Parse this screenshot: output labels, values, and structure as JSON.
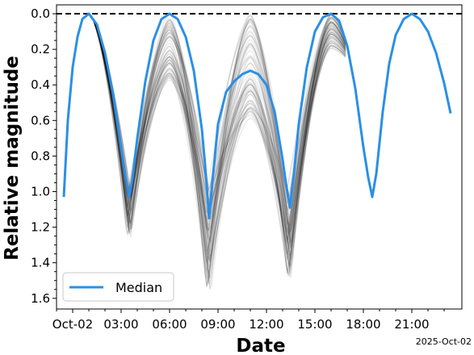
{
  "chart_data": {
    "type": "line",
    "xlabel": "Date",
    "ylabel": "Relative magnitude",
    "x_offset_label": "2025-Oct-02",
    "x_tick_labels": [
      "Oct-02",
      "03:00",
      "06:00",
      "09:00",
      "12:00",
      "15:00",
      "18:00",
      "21:00"
    ],
    "x_ticks_hours": [
      0,
      3,
      6,
      9,
      12,
      15,
      18,
      21
    ],
    "xlim_hours": [
      -1.0,
      24.1
    ],
    "y_tick_labels": [
      "0.0",
      "0.2",
      "0.4",
      "0.6",
      "0.8",
      "1.0",
      "1.2",
      "1.4",
      "1.6"
    ],
    "y_ticks": [
      0.0,
      0.2,
      0.4,
      0.6,
      0.8,
      1.0,
      1.2,
      1.4,
      1.6
    ],
    "ylim": [
      1.66,
      -0.05
    ],
    "y_inverted": true,
    "reference_line": {
      "y": 0.0,
      "style": "dashed",
      "color": "#000000"
    },
    "ensemble": {
      "description_color": "#000000",
      "x_range_hours": [
        1.0,
        16.9
      ],
      "minima_hours": [
        1.0,
        6.0,
        11.0,
        16.0
      ],
      "dip_hours": [
        3.5,
        8.4,
        13.4
      ],
      "dip_max_depth": [
        1.27,
        1.58,
        1.5
      ],
      "peak_min_height": [
        0.0,
        0.38,
        0.6,
        0.2
      ]
    },
    "series": [
      {
        "name": "Median",
        "color": "#2b8fe6",
        "x_hours": [
          -0.55,
          -0.3,
          0.0,
          0.3,
          0.6,
          1.0,
          1.5,
          2.0,
          2.5,
          3.0,
          3.3,
          3.5,
          3.7,
          4.0,
          4.5,
          5.0,
          5.5,
          6.0,
          6.5,
          7.0,
          7.5,
          8.0,
          8.2,
          8.45,
          8.7,
          9.0,
          9.5,
          10.0,
          10.5,
          11.0,
          11.5,
          12.0,
          12.5,
          13.0,
          13.2,
          13.45,
          13.7,
          14.0,
          14.5,
          15.0,
          15.5,
          16.0,
          16.5,
          17.0,
          17.5,
          18.0,
          18.3,
          18.55,
          18.8,
          19.2,
          19.6,
          20.0,
          20.5,
          21.0,
          21.5,
          22.0,
          22.5,
          23.0,
          23.4
        ],
        "y": [
          1.03,
          0.6,
          0.3,
          0.13,
          0.03,
          0.0,
          0.06,
          0.22,
          0.45,
          0.75,
          0.93,
          1.03,
          0.93,
          0.7,
          0.38,
          0.15,
          0.03,
          0.0,
          0.03,
          0.13,
          0.32,
          0.65,
          0.85,
          1.15,
          0.9,
          0.62,
          0.44,
          0.38,
          0.34,
          0.32,
          0.34,
          0.4,
          0.55,
          0.82,
          0.95,
          1.09,
          0.9,
          0.62,
          0.3,
          0.1,
          0.02,
          0.0,
          0.04,
          0.18,
          0.42,
          0.75,
          0.92,
          1.03,
          0.9,
          0.55,
          0.28,
          0.12,
          0.03,
          0.0,
          0.03,
          0.1,
          0.22,
          0.39,
          0.56
        ]
      }
    ],
    "legend": {
      "entries": [
        "Median"
      ],
      "position": "lower-left"
    },
    "grid": false
  }
}
